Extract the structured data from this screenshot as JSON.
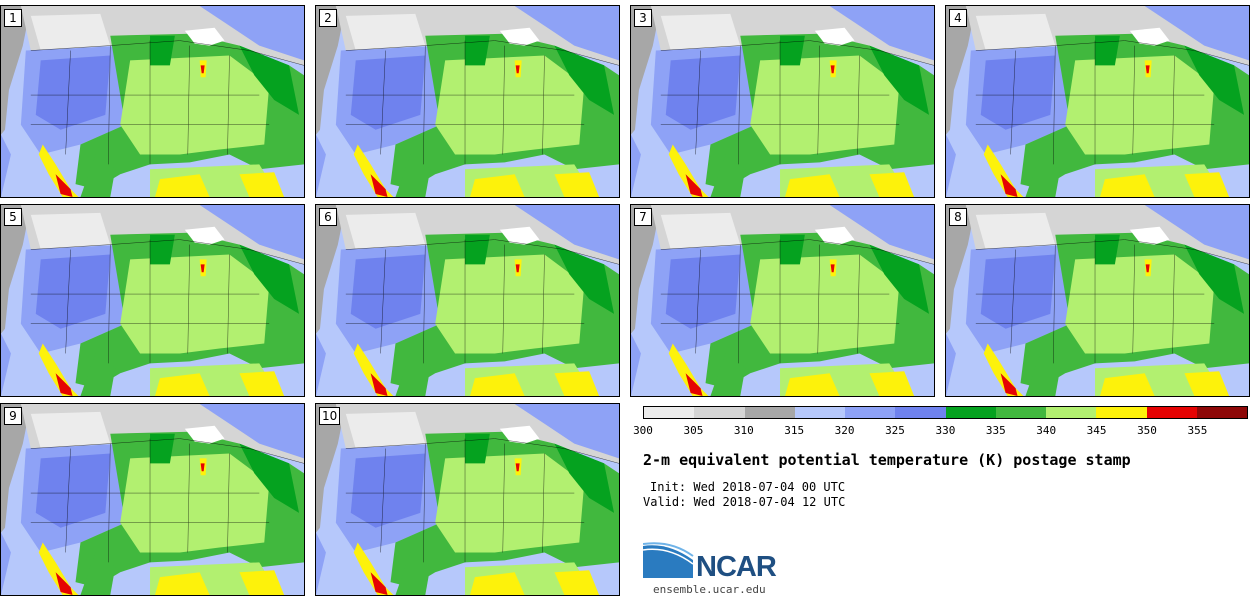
{
  "panels": [
    {
      "label": "1"
    },
    {
      "label": "2"
    },
    {
      "label": "3"
    },
    {
      "label": "4"
    },
    {
      "label": "5"
    },
    {
      "label": "6"
    },
    {
      "label": "7"
    },
    {
      "label": "8"
    },
    {
      "label": "9"
    },
    {
      "label": "10"
    }
  ],
  "colorbar": {
    "colors": [
      "#ececec",
      "#d5d5d5",
      "#a7a7a7",
      "#b6c8fb",
      "#8ea2f6",
      "#6f82ee",
      "#05a21f",
      "#41b83e",
      "#b2f070",
      "#fdf20b",
      "#e50303",
      "#8e0808"
    ],
    "ticks": [
      "300",
      "305",
      "310",
      "315",
      "320",
      "325",
      "330",
      "335",
      "340",
      "345",
      "350",
      "355"
    ]
  },
  "title": "2-m equivalent potential temperature (K) postage stamp",
  "init": "Init: Wed 2018-07-04 00 UTC",
  "valid": "Valid: Wed 2018-07-04 12 UTC",
  "logo": {
    "text": "NCAR",
    "url": "ensemble.ucar.edu"
  }
}
